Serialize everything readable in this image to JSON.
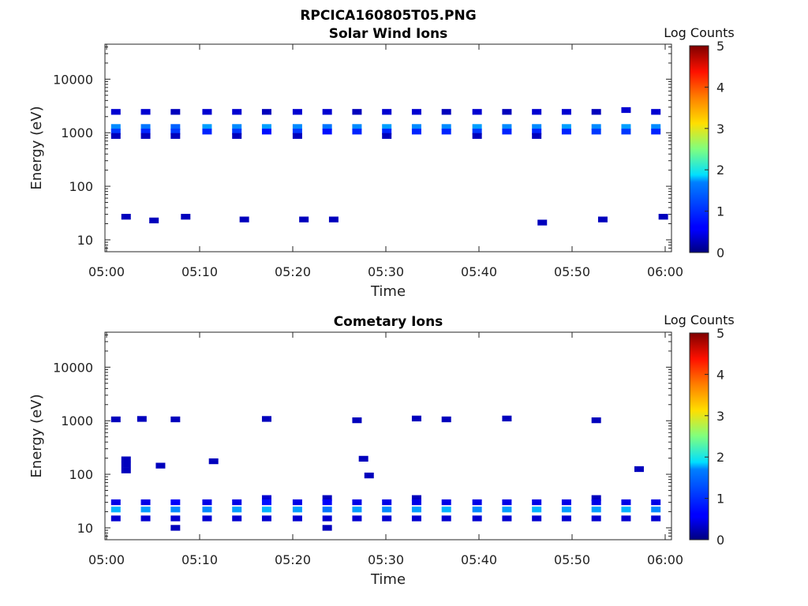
{
  "figure": {
    "file_title": "RPCICA160805T05.PNG"
  },
  "chart_data": [
    {
      "type": "heatmap",
      "title": "Solar Wind Ions",
      "xlabel": "Time",
      "ylabel": "Energy (eV)",
      "y_scale": "log",
      "x_range": [
        "05:00",
        "06:00"
      ],
      "ylim": [
        6,
        45000
      ],
      "x_ticks": [
        "05:00",
        "05:10",
        "05:20",
        "05:30",
        "05:40",
        "05:50",
        "06:00"
      ],
      "y_ticks": [
        "10",
        "100",
        "1000",
        "10000"
      ],
      "colorbar": {
        "label": "Log Counts",
        "min": 0,
        "max": 5,
        "ticks": [
          "0",
          "1",
          "2",
          "3",
          "4",
          "5"
        ],
        "colormap": "jet"
      },
      "sweep_minutes": [
        1.0,
        4.2,
        7.4,
        10.8,
        14.0,
        17.2,
        20.5,
        23.7,
        26.9,
        30.1,
        33.3,
        36.5,
        39.8,
        43.0,
        46.2,
        49.4,
        52.6,
        55.8,
        59.0
      ],
      "cells": [
        {
          "t": 1.0,
          "e": 2450,
          "v": 0.4
        },
        {
          "t": 1.0,
          "e": 1280,
          "v": 1.3
        },
        {
          "t": 1.0,
          "e": 1050,
          "v": 0.9
        },
        {
          "t": 1.0,
          "e": 870,
          "v": 0.3
        },
        {
          "t": 4.2,
          "e": 2450,
          "v": 0.4
        },
        {
          "t": 4.2,
          "e": 1280,
          "v": 1.2
        },
        {
          "t": 4.2,
          "e": 1050,
          "v": 0.8
        },
        {
          "t": 4.2,
          "e": 870,
          "v": 0.3
        },
        {
          "t": 7.4,
          "e": 2450,
          "v": 0.3
        },
        {
          "t": 7.4,
          "e": 1280,
          "v": 1.1
        },
        {
          "t": 7.4,
          "e": 1050,
          "v": 0.9
        },
        {
          "t": 7.4,
          "e": 870,
          "v": 0.3
        },
        {
          "t": 10.8,
          "e": 2450,
          "v": 0.4
        },
        {
          "t": 10.8,
          "e": 1280,
          "v": 1.4
        },
        {
          "t": 10.8,
          "e": 1050,
          "v": 0.8
        },
        {
          "t": 14.0,
          "e": 2450,
          "v": 0.4
        },
        {
          "t": 14.0,
          "e": 1280,
          "v": 1.3
        },
        {
          "t": 14.0,
          "e": 1050,
          "v": 0.9
        },
        {
          "t": 14.0,
          "e": 870,
          "v": 0.3
        },
        {
          "t": 17.2,
          "e": 2450,
          "v": 0.3
        },
        {
          "t": 17.2,
          "e": 1280,
          "v": 1.4
        },
        {
          "t": 17.2,
          "e": 1050,
          "v": 0.7
        },
        {
          "t": 20.5,
          "e": 2450,
          "v": 0.4
        },
        {
          "t": 20.5,
          "e": 1280,
          "v": 1.3
        },
        {
          "t": 20.5,
          "e": 1050,
          "v": 0.9
        },
        {
          "t": 20.5,
          "e": 870,
          "v": 0.3
        },
        {
          "t": 23.7,
          "e": 2450,
          "v": 0.4
        },
        {
          "t": 23.7,
          "e": 1280,
          "v": 1.2
        },
        {
          "t": 23.7,
          "e": 1050,
          "v": 0.7
        },
        {
          "t": 26.9,
          "e": 2450,
          "v": 0.3
        },
        {
          "t": 26.9,
          "e": 1280,
          "v": 1.3
        },
        {
          "t": 26.9,
          "e": 1050,
          "v": 0.8
        },
        {
          "t": 30.1,
          "e": 2450,
          "v": 0.4
        },
        {
          "t": 30.1,
          "e": 1280,
          "v": 1.4
        },
        {
          "t": 30.1,
          "e": 1050,
          "v": 0.8
        },
        {
          "t": 30.1,
          "e": 870,
          "v": 0.3
        },
        {
          "t": 33.3,
          "e": 2450,
          "v": 0.4
        },
        {
          "t": 33.3,
          "e": 1280,
          "v": 1.3
        },
        {
          "t": 33.3,
          "e": 1050,
          "v": 0.8
        },
        {
          "t": 36.5,
          "e": 2450,
          "v": 0.3
        },
        {
          "t": 36.5,
          "e": 1280,
          "v": 1.3
        },
        {
          "t": 36.5,
          "e": 1050,
          "v": 0.8
        },
        {
          "t": 39.8,
          "e": 2450,
          "v": 0.4
        },
        {
          "t": 39.8,
          "e": 1280,
          "v": 1.4
        },
        {
          "t": 39.8,
          "e": 1050,
          "v": 0.9
        },
        {
          "t": 39.8,
          "e": 870,
          "v": 0.3
        },
        {
          "t": 43.0,
          "e": 2450,
          "v": 0.3
        },
        {
          "t": 43.0,
          "e": 1280,
          "v": 1.3
        },
        {
          "t": 43.0,
          "e": 1050,
          "v": 0.8
        },
        {
          "t": 46.2,
          "e": 2450,
          "v": 0.4
        },
        {
          "t": 46.2,
          "e": 1280,
          "v": 1.3
        },
        {
          "t": 46.2,
          "e": 1050,
          "v": 0.8
        },
        {
          "t": 46.2,
          "e": 870,
          "v": 0.3
        },
        {
          "t": 49.4,
          "e": 2450,
          "v": 0.4
        },
        {
          "t": 49.4,
          "e": 1280,
          "v": 1.4
        },
        {
          "t": 49.4,
          "e": 1050,
          "v": 0.8
        },
        {
          "t": 52.6,
          "e": 2450,
          "v": 0.3
        },
        {
          "t": 52.6,
          "e": 1280,
          "v": 1.3
        },
        {
          "t": 52.6,
          "e": 1050,
          "v": 0.9
        },
        {
          "t": 55.8,
          "e": 2650,
          "v": 0.4
        },
        {
          "t": 55.8,
          "e": 1280,
          "v": 1.4
        },
        {
          "t": 55.8,
          "e": 1050,
          "v": 0.9
        },
        {
          "t": 59.0,
          "e": 2450,
          "v": 0.4
        },
        {
          "t": 59.0,
          "e": 1280,
          "v": 1.3
        },
        {
          "t": 59.0,
          "e": 1050,
          "v": 0.8
        },
        {
          "t": 2.1,
          "e": 27,
          "v": 0.2
        },
        {
          "t": 5.1,
          "e": 23,
          "v": 0.2
        },
        {
          "t": 8.5,
          "e": 27,
          "v": 0.2
        },
        {
          "t": 14.8,
          "e": 24,
          "v": 0.3
        },
        {
          "t": 21.2,
          "e": 24,
          "v": 0.3
        },
        {
          "t": 24.4,
          "e": 24,
          "v": 0.3
        },
        {
          "t": 46.8,
          "e": 21,
          "v": 0.2
        },
        {
          "t": 53.3,
          "e": 24,
          "v": 0.3
        },
        {
          "t": 59.8,
          "e": 27,
          "v": 0.2
        }
      ]
    },
    {
      "type": "heatmap",
      "title": "Cometary Ions",
      "xlabel": "Time",
      "ylabel": "Energy (eV)",
      "y_scale": "log",
      "x_range": [
        "05:00",
        "06:00"
      ],
      "ylim": [
        6,
        45000
      ],
      "x_ticks": [
        "05:00",
        "05:10",
        "05:20",
        "05:30",
        "05:40",
        "05:50",
        "06:00"
      ],
      "y_ticks": [
        "10",
        "100",
        "1000",
        "10000"
      ],
      "colorbar": {
        "label": "Log Counts",
        "min": 0,
        "max": 5,
        "ticks": [
          "0",
          "1",
          "2",
          "3",
          "4",
          "5"
        ],
        "colormap": "jet"
      },
      "sweep_minutes": [
        1.0,
        4.2,
        7.4,
        10.8,
        14.0,
        17.2,
        20.5,
        23.7,
        26.9,
        30.1,
        33.3,
        36.5,
        39.8,
        43.0,
        46.2,
        49.4,
        52.6,
        55.8,
        59.0
      ],
      "cells": [
        {
          "t": 1.0,
          "e": 30,
          "v": 0.5
        },
        {
          "t": 1.0,
          "e": 22,
          "v": 1.5
        },
        {
          "t": 1.0,
          "e": 15,
          "v": 0.4
        },
        {
          "t": 4.2,
          "e": 30,
          "v": 0.5
        },
        {
          "t": 4.2,
          "e": 22,
          "v": 1.4
        },
        {
          "t": 4.2,
          "e": 15,
          "v": 0.4
        },
        {
          "t": 7.4,
          "e": 30,
          "v": 0.6
        },
        {
          "t": 7.4,
          "e": 22,
          "v": 1.3
        },
        {
          "t": 7.4,
          "e": 15,
          "v": 0.4
        },
        {
          "t": 7.4,
          "e": 10,
          "v": 0.2
        },
        {
          "t": 10.8,
          "e": 30,
          "v": 0.5
        },
        {
          "t": 10.8,
          "e": 22,
          "v": 1.3
        },
        {
          "t": 10.8,
          "e": 15,
          "v": 0.4
        },
        {
          "t": 14.0,
          "e": 30,
          "v": 0.5
        },
        {
          "t": 14.0,
          "e": 22,
          "v": 1.4
        },
        {
          "t": 14.0,
          "e": 15,
          "v": 0.4
        },
        {
          "t": 17.2,
          "e": 36,
          "v": 0.4
        },
        {
          "t": 17.2,
          "e": 30,
          "v": 0.7
        },
        {
          "t": 17.2,
          "e": 22,
          "v": 1.5
        },
        {
          "t": 17.2,
          "e": 15,
          "v": 0.4
        },
        {
          "t": 20.5,
          "e": 30,
          "v": 0.5
        },
        {
          "t": 20.5,
          "e": 22,
          "v": 1.4
        },
        {
          "t": 20.5,
          "e": 15,
          "v": 0.4
        },
        {
          "t": 23.7,
          "e": 36,
          "v": 0.3
        },
        {
          "t": 23.7,
          "e": 30,
          "v": 0.6
        },
        {
          "t": 23.7,
          "e": 22,
          "v": 1.2
        },
        {
          "t": 23.7,
          "e": 15,
          "v": 0.4
        },
        {
          "t": 23.7,
          "e": 10,
          "v": 0.2
        },
        {
          "t": 26.9,
          "e": 30,
          "v": 0.5
        },
        {
          "t": 26.9,
          "e": 22,
          "v": 1.4
        },
        {
          "t": 26.9,
          "e": 15,
          "v": 0.4
        },
        {
          "t": 30.1,
          "e": 30,
          "v": 0.5
        },
        {
          "t": 30.1,
          "e": 22,
          "v": 1.3
        },
        {
          "t": 30.1,
          "e": 15,
          "v": 0.4
        },
        {
          "t": 33.3,
          "e": 36,
          "v": 0.3
        },
        {
          "t": 33.3,
          "e": 30,
          "v": 0.5
        },
        {
          "t": 33.3,
          "e": 22,
          "v": 1.4
        },
        {
          "t": 33.3,
          "e": 15,
          "v": 0.4
        },
        {
          "t": 36.5,
          "e": 30,
          "v": 0.5
        },
        {
          "t": 36.5,
          "e": 22,
          "v": 1.5
        },
        {
          "t": 36.5,
          "e": 15,
          "v": 0.4
        },
        {
          "t": 39.8,
          "e": 30,
          "v": 0.5
        },
        {
          "t": 39.8,
          "e": 22,
          "v": 1.3
        },
        {
          "t": 39.8,
          "e": 15,
          "v": 0.4
        },
        {
          "t": 43.0,
          "e": 30,
          "v": 0.5
        },
        {
          "t": 43.0,
          "e": 22,
          "v": 1.4
        },
        {
          "t": 43.0,
          "e": 15,
          "v": 0.4
        },
        {
          "t": 46.2,
          "e": 30,
          "v": 0.5
        },
        {
          "t": 46.2,
          "e": 22,
          "v": 1.5
        },
        {
          "t": 46.2,
          "e": 15,
          "v": 0.4
        },
        {
          "t": 49.4,
          "e": 30,
          "v": 0.5
        },
        {
          "t": 49.4,
          "e": 22,
          "v": 1.4
        },
        {
          "t": 49.4,
          "e": 15,
          "v": 0.4
        },
        {
          "t": 52.6,
          "e": 36,
          "v": 0.3
        },
        {
          "t": 52.6,
          "e": 30,
          "v": 0.5
        },
        {
          "t": 52.6,
          "e": 22,
          "v": 1.4
        },
        {
          "t": 52.6,
          "e": 15,
          "v": 0.4
        },
        {
          "t": 55.8,
          "e": 30,
          "v": 0.5
        },
        {
          "t": 55.8,
          "e": 22,
          "v": 1.5
        },
        {
          "t": 55.8,
          "e": 15,
          "v": 0.4
        },
        {
          "t": 59.0,
          "e": 30,
          "v": 0.5
        },
        {
          "t": 59.0,
          "e": 22,
          "v": 1.3
        },
        {
          "t": 59.0,
          "e": 15,
          "v": 0.4
        },
        {
          "t": 1.0,
          "e": 1060,
          "v": 0.2
        },
        {
          "t": 3.8,
          "e": 1080,
          "v": 0.2
        },
        {
          "t": 7.4,
          "e": 1060,
          "v": 0.2
        },
        {
          "t": 17.2,
          "e": 1080,
          "v": 0.3
        },
        {
          "t": 26.9,
          "e": 1020,
          "v": 0.2
        },
        {
          "t": 33.3,
          "e": 1100,
          "v": 0.2
        },
        {
          "t": 36.5,
          "e": 1060,
          "v": 0.3
        },
        {
          "t": 43.0,
          "e": 1100,
          "v": 0.2
        },
        {
          "t": 52.6,
          "e": 1020,
          "v": 0.2
        },
        {
          "t": 2.1,
          "e": 190,
          "v": 0.2
        },
        {
          "t": 2.1,
          "e": 150,
          "v": 0.2
        },
        {
          "t": 2.1,
          "e": 118,
          "v": 0.2
        },
        {
          "t": 5.8,
          "e": 145,
          "v": 0.2
        },
        {
          "t": 11.5,
          "e": 175,
          "v": 0.3
        },
        {
          "t": 27.6,
          "e": 195,
          "v": 0.2
        },
        {
          "t": 28.2,
          "e": 95,
          "v": 0.2
        },
        {
          "t": 57.2,
          "e": 125,
          "v": 0.2
        }
      ]
    }
  ]
}
